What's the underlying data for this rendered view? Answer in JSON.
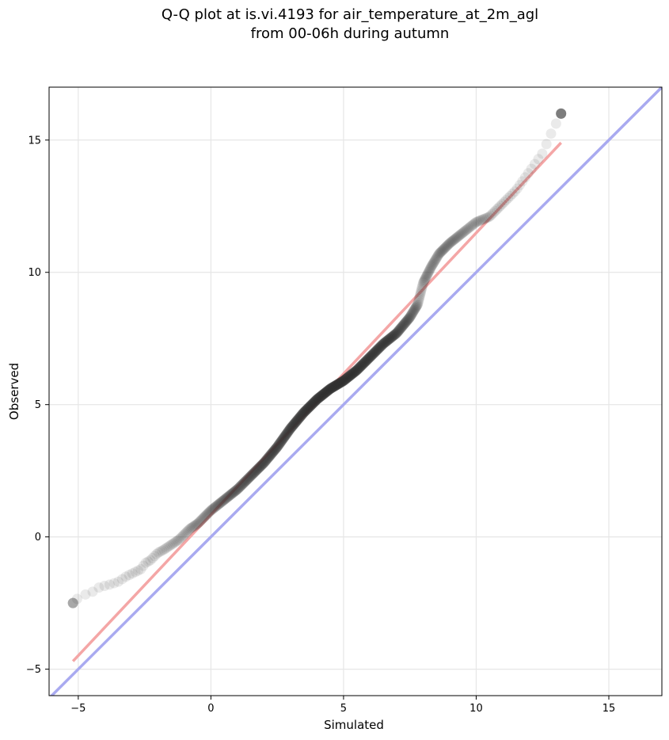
{
  "chart_data": {
    "type": "scatter",
    "title_lines": [
      "Q-Q plot at is.vi.4193 for air_temperature_at_2m_agl",
      "from 00-06h during autumn"
    ],
    "xlabel": "Simulated",
    "ylabel": "Observed",
    "xlim": [
      -6.1,
      17.0
    ],
    "ylim": [
      -6.0,
      17.0
    ],
    "x_ticks": [
      -5,
      0,
      5,
      10,
      15
    ],
    "y_ticks": [
      -5,
      0,
      5,
      10,
      15
    ],
    "grid": true,
    "colors": {
      "points": "#333333",
      "fit_line": "#f4a6a6",
      "identity_line": "#a9aaf0",
      "grid": "#e6e6e6"
    },
    "fit_line": {
      "x": [
        -5.2,
        13.2
      ],
      "y": [
        -4.7,
        14.9
      ]
    },
    "identity_line": {
      "x": [
        -6.1,
        17.0
      ],
      "y": [
        -6.1,
        17.0
      ]
    },
    "quantile_anchors": {
      "x": [
        -5.2,
        -5.0,
        -4.8,
        -4.5,
        -4.2,
        -3.8,
        -3.5,
        -3.2,
        -3.0,
        -2.8,
        -2.6,
        -2.5,
        -2.3,
        -2.2,
        -2.0,
        -1.8,
        -1.5,
        -1.2,
        -1.0,
        -0.8,
        -0.5,
        -0.2,
        0.0,
        0.5,
        1.0,
        1.5,
        2.0,
        2.5,
        3.0,
        3.5,
        4.0,
        4.5,
        5.0,
        5.5,
        6.0,
        6.5,
        7.0,
        7.5,
        7.8,
        8.0,
        8.3,
        8.6,
        9.0,
        9.5,
        10.0,
        10.5,
        11.0,
        11.5,
        12.0,
        12.5,
        12.8,
        13.2
      ],
      "y": [
        -2.5,
        -2.3,
        -2.2,
        -2.1,
        -1.9,
        -1.8,
        -1.7,
        -1.5,
        -1.4,
        -1.3,
        -1.2,
        -1.0,
        -0.9,
        -0.8,
        -0.6,
        -0.5,
        -0.3,
        -0.1,
        0.1,
        0.3,
        0.5,
        0.8,
        1.0,
        1.4,
        1.8,
        2.3,
        2.8,
        3.4,
        4.1,
        4.7,
        5.2,
        5.6,
        5.9,
        6.3,
        6.8,
        7.3,
        7.7,
        8.3,
        8.8,
        9.6,
        10.2,
        10.7,
        11.1,
        11.5,
        11.9,
        12.1,
        12.6,
        13.1,
        13.8,
        14.5,
        15.2,
        16.0
      ]
    },
    "n_points": 900
  }
}
